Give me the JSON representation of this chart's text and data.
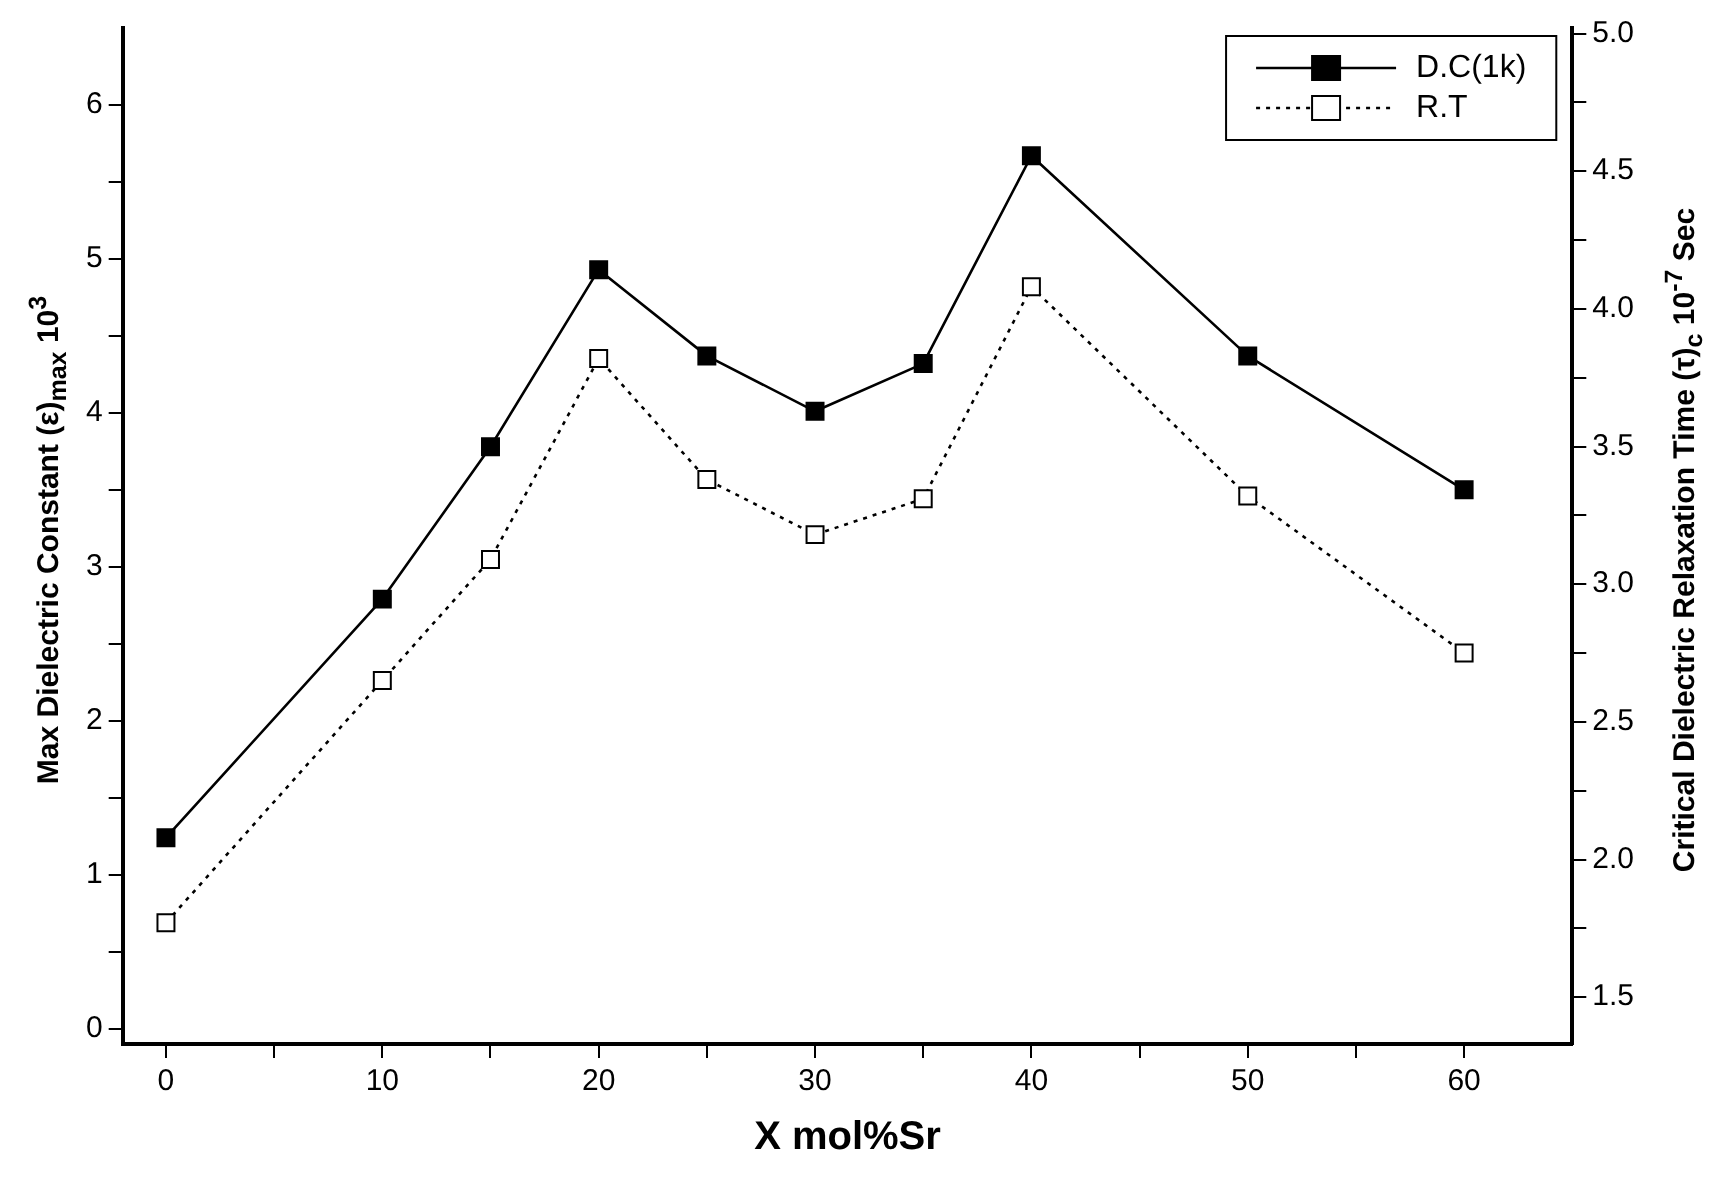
{
  "chart_data": {
    "type": "line",
    "xlabel": "X mol%Sr",
    "ylabel": "Max Dielectric Constant (ε)$_{max}$ 10$^{3}$",
    "y2label": "Critical Dielectric Relaxation Time (τ)$_{c}$ 10$^{-7}$ Sec",
    "x": [
      0,
      10,
      15,
      20,
      25,
      30,
      35,
      40,
      50,
      60
    ],
    "series": [
      {
        "name": "D.C(1k)",
        "color": "#000000",
        "marker": "square",
        "line_style": "solid",
        "values": [
          1.24,
          2.79,
          3.78,
          4.93,
          4.37,
          4.01,
          4.32,
          5.67,
          4.37,
          3.5
        ]
      },
      {
        "name": "R.T",
        "color": "#000000",
        "marker": "square",
        "line_style": "dotted",
        "axis": "y2",
        "values": [
          1.77,
          2.65,
          3.09,
          3.82,
          3.38,
          3.18,
          3.31,
          4.08,
          3.32,
          2.75
        ]
      }
    ],
    "xlim": [
      -2,
      65
    ],
    "xticks": [
      0,
      {
        "value": 5,
        "label": null
      },
      10,
      {
        "value": 15,
        "label": null
      },
      20,
      {
        "value": 25,
        "label": null
      },
      30,
      {
        "value": 35,
        "label": null
      },
      40,
      {
        "value": 45,
        "label": null
      },
      50,
      {
        "value": 55,
        "label": null
      },
      60
    ],
    "ylim": [
      -0.1,
      6.5
    ],
    "yticks": [
      0,
      {
        "value": 0.5,
        "label": null
      },
      1,
      {
        "value": 1.5,
        "label": null
      },
      2,
      {
        "value": 2.5,
        "label": null
      },
      3,
      {
        "value": 3.5,
        "label": null
      },
      4,
      {
        "value": 4.5,
        "label": null
      },
      5,
      {
        "value": 5.5,
        "label": null
      },
      6
    ],
    "y2lim": [
      1.33,
      5.02
    ],
    "y2ticks": [
      {
        "value": 1.5,
        "label": "1.5"
      },
      {
        "value": 1.75,
        "label": null
      },
      {
        "value": 2,
        "label": "2.0"
      },
      {
        "value": 2.25,
        "label": null
      },
      {
        "value": 2.5,
        "label": "2.5"
      },
      {
        "value": 2.75,
        "label": null
      },
      {
        "value": 3,
        "label": "3.0"
      },
      {
        "value": 3.25,
        "label": null
      },
      {
        "value": 3.5,
        "label": "3.5"
      },
      {
        "value": 3.75,
        "label": null
      },
      {
        "value": 4,
        "label": "4.0"
      },
      {
        "value": 4.25,
        "label": null
      },
      {
        "value": 4.5,
        "label": "4.5"
      },
      {
        "value": 4.75,
        "label": null
      },
      {
        "value": 5,
        "label": "5.0"
      }
    ],
    "grid": false,
    "legend": "top right"
  }
}
